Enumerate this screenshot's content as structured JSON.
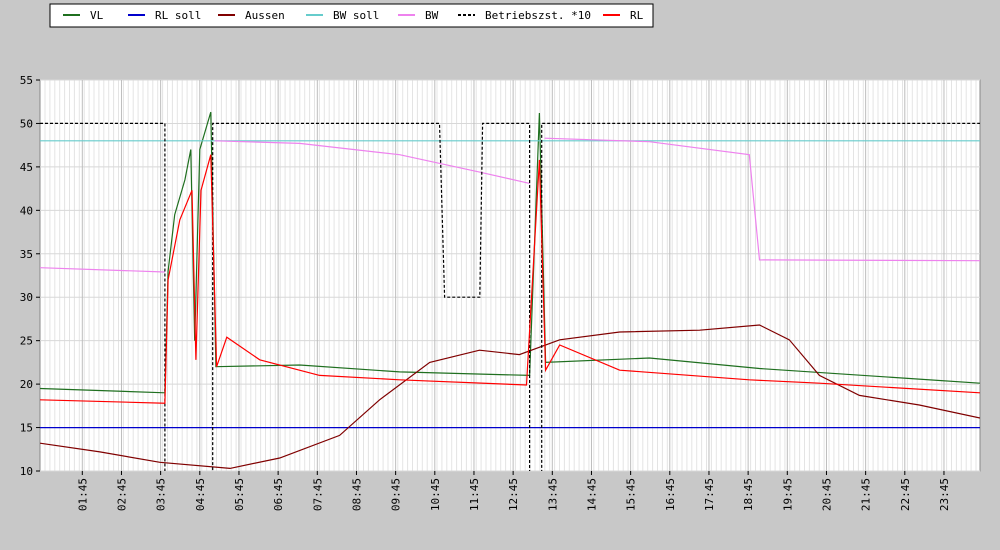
{
  "chart_data": {
    "type": "line",
    "xlim": [
      0.67,
      24.67
    ],
    "xticks": [
      {
        "value": 1.75,
        "label": "01:45"
      },
      {
        "value": 2.75,
        "label": "02:45"
      },
      {
        "value": 3.75,
        "label": "03:45"
      },
      {
        "value": 4.75,
        "label": "04:45"
      },
      {
        "value": 5.75,
        "label": "05:45"
      },
      {
        "value": 6.75,
        "label": "06:45"
      },
      {
        "value": 7.75,
        "label": "07:45"
      },
      {
        "value": 8.75,
        "label": "08:45"
      },
      {
        "value": 9.75,
        "label": "09:45"
      },
      {
        "value": 10.75,
        "label": "10:45"
      },
      {
        "value": 11.75,
        "label": "11:45"
      },
      {
        "value": 12.75,
        "label": "12:45"
      },
      {
        "value": 13.75,
        "label": "13:45"
      },
      {
        "value": 14.75,
        "label": "14:45"
      },
      {
        "value": 15.75,
        "label": "15:45"
      },
      {
        "value": 16.75,
        "label": "16:45"
      },
      {
        "value": 17.75,
        "label": "17:45"
      },
      {
        "value": 18.75,
        "label": "18:45"
      },
      {
        "value": 19.75,
        "label": "19:45"
      },
      {
        "value": 20.75,
        "label": "20:45"
      },
      {
        "value": 21.75,
        "label": "21:45"
      },
      {
        "value": 22.75,
        "label": "22:45"
      },
      {
        "value": 23.75,
        "label": "23:45"
      }
    ],
    "ylim": [
      10,
      55
    ],
    "yticks": [
      10,
      15,
      20,
      25,
      30,
      35,
      40,
      45,
      50,
      55
    ],
    "grid": true,
    "series": [
      {
        "name": "VL",
        "color": "#1f6f1f",
        "dash": false,
        "x": [
          0.67,
          3.86,
          3.94,
          4.11,
          4.37,
          4.52,
          4.62,
          4.75,
          5.03,
          5.16,
          7.3,
          9.85,
          13.17,
          13.42,
          13.58,
          16.23,
          19.04,
          24.67
        ],
        "values": [
          19.5,
          19.0,
          33,
          39.5,
          43.5,
          47,
          25,
          47,
          51.3,
          22,
          22.2,
          21.4,
          21,
          51.2,
          22.5,
          23,
          21.8,
          20.1
        ]
      },
      {
        "name": "RL soll",
        "color": "#0000cc",
        "dash": false,
        "x": [
          0.67,
          24.67
        ],
        "values": [
          15,
          15
        ]
      },
      {
        "name": "Aussen",
        "color": "#800000",
        "dash": false,
        "x": [
          0.67,
          2.2,
          3.73,
          5.52,
          6.79,
          8.32,
          9.34,
          10.62,
          11.89,
          12.91,
          13.94,
          15.47,
          17.51,
          19.04,
          19.8,
          20.57,
          21.59,
          23.12,
          24.67
        ],
        "values": [
          13.2,
          12.2,
          11.0,
          10.3,
          11.5,
          14.1,
          18.2,
          22.5,
          23.9,
          23.4,
          25.1,
          26,
          26.2,
          26.8,
          25.1,
          21,
          18.7,
          17.6,
          16.1
        ]
      },
      {
        "name": "BW soll",
        "color": "#66cccc",
        "dash": false,
        "x": [
          0.67,
          24.67
        ],
        "values": [
          48,
          48
        ]
      },
      {
        "name": "BW",
        "color": "#ee82ee",
        "dash": false,
        "x": [
          0.67,
          3.86,
          4.5,
          5.13,
          7.3,
          9.85,
          11.89,
          13.17,
          13.3,
          13.55,
          16.23,
          18.78,
          19.04,
          24.67
        ],
        "values": [
          33.4,
          32.9,
          null,
          48,
          47.7,
          46.4,
          44.4,
          43.1,
          null,
          48.3,
          47.9,
          46.4,
          34.3,
          34.2
        ]
      },
      {
        "name": "Betriebszst. *10",
        "color": "#000000",
        "dash": true,
        "x": [
          0.67,
          3.86,
          3.86,
          5.08,
          5.08,
          10.87,
          11.0,
          11.9,
          11.97,
          13.17,
          13.17,
          13.48,
          13.48,
          24.67
        ],
        "values": [
          50,
          50,
          0,
          0,
          50,
          50,
          30,
          30,
          50,
          50,
          0,
          0,
          50,
          50
        ]
      },
      {
        "name": "RL",
        "color": "#ff0000",
        "dash": false,
        "x": [
          0.67,
          3.86,
          3.94,
          4.24,
          4.55,
          4.65,
          4.78,
          5.03,
          5.18,
          5.44,
          6.28,
          7.81,
          9.85,
          13.09,
          13.42,
          13.58,
          13.94,
          15.47,
          18.78,
          20.57,
          24.67
        ],
        "values": [
          18.2,
          17.8,
          32,
          38.9,
          42.3,
          22.8,
          42.3,
          46.4,
          22,
          25.4,
          22.8,
          21,
          20.5,
          19.9,
          45.8,
          21.6,
          24.5,
          21.6,
          20.5,
          20.1,
          19.0
        ]
      }
    ]
  }
}
